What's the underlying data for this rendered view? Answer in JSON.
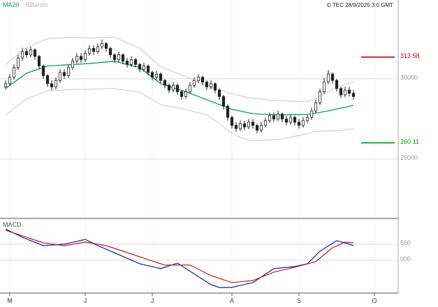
{
  "header": {
    "ma20_label": "MA20",
    "bbands_label": "BBands",
    "copyright": "© TEC 28/9/2025 3:0 GMT"
  },
  "colors": {
    "ma20": "#00a650",
    "bbands": "#c9c9c9",
    "candle": "#222222",
    "grid": "#dcdcdc",
    "month_grid": "#f0f0f0",
    "axis": "#555555",
    "right_axis": "#aaaaaa",
    "resistance": "#cc0000",
    "support": "#009900",
    "macd_line": "#1a1aae",
    "signal_line": "#c02020",
    "month_label": "#444444"
  },
  "chart_data": [
    {
      "type": "candlestick",
      "panel": "price",
      "x_axis": {
        "months": [
          {
            "label": "M",
            "i": 1
          },
          {
            "label": "J",
            "i": 19
          },
          {
            "label": "J",
            "i": 35
          },
          {
            "label": "A",
            "i": 54
          },
          {
            "label": "S",
            "i": 70
          },
          {
            "label": "O",
            "i": 88
          }
        ]
      },
      "y_axis": {
        "gridlines": [
          {
            "value": 300,
            "label": "30000"
          },
          {
            "value": 250,
            "label": "25000"
          }
        ]
      },
      "levels": [
        {
          "name": "resistance",
          "value": 313.58,
          "label": "313 58"
        },
        {
          "name": "support",
          "value": 260.11,
          "label": "260 11"
        }
      ],
      "series": {
        "candles_ohlc": [
          [
            295,
            299,
            293.5,
            297
          ],
          [
            297,
            303,
            295.5,
            301
          ],
          [
            301,
            309,
            299.5,
            307
          ],
          [
            307,
            315,
            305.5,
            313
          ],
          [
            313,
            319.5,
            311,
            317
          ],
          [
            317,
            319,
            313,
            315
          ],
          [
            315,
            320,
            313.5,
            318
          ],
          [
            318,
            319,
            312,
            314
          ],
          [
            314,
            315,
            306,
            308
          ],
          [
            308,
            309,
            300,
            302
          ],
          [
            302,
            303,
            295,
            297
          ],
          [
            297,
            299,
            293,
            295
          ],
          [
            295,
            301,
            293.5,
            299
          ],
          [
            299,
            306,
            297.5,
            304
          ],
          [
            304,
            306,
            300,
            302
          ],
          [
            302,
            309,
            300.5,
            307
          ],
          [
            307,
            313,
            305.5,
            311
          ],
          [
            311,
            316,
            309.5,
            314
          ],
          [
            314,
            316,
            310,
            312
          ],
          [
            312,
            318,
            310.5,
            316
          ],
          [
            316,
            321,
            314.5,
            319
          ],
          [
            319,
            321,
            315,
            317
          ],
          [
            317,
            322,
            315.5,
            320
          ],
          [
            320,
            324.5,
            318.5,
            322
          ],
          [
            322,
            323,
            317,
            319
          ],
          [
            319,
            320,
            313,
            315
          ],
          [
            315,
            316,
            310,
            312
          ],
          [
            312,
            317,
            310.5,
            315
          ],
          [
            315,
            316,
            309,
            311
          ],
          [
            311,
            313,
            307,
            309
          ],
          [
            309,
            314,
            307.5,
            312
          ],
          [
            312,
            313,
            307,
            309
          ],
          [
            309,
            310,
            304,
            306
          ],
          [
            306,
            310,
            304.5,
            308
          ],
          [
            308,
            309,
            302,
            304
          ],
          [
            304,
            305,
            299,
            301
          ],
          [
            301,
            305,
            299.5,
            303
          ],
          [
            303,
            304,
            297,
            299
          ],
          [
            299,
            300,
            294,
            296
          ],
          [
            296,
            297,
            291,
            293
          ],
          [
            293,
            298,
            291.5,
            296
          ],
          [
            296,
            297,
            290,
            292
          ],
          [
            292,
            293,
            287,
            289
          ],
          [
            289,
            294,
            287.5,
            292
          ],
          [
            292,
            298,
            290.5,
            296
          ],
          [
            296,
            301,
            294.5,
            299
          ],
          [
            299,
            303,
            297.5,
            301
          ],
          [
            301,
            302,
            296,
            298
          ],
          [
            298,
            299,
            293,
            295
          ],
          [
            295,
            299,
            293.5,
            297
          ],
          [
            297,
            298,
            291,
            293
          ],
          [
            293,
            294,
            287,
            289
          ],
          [
            289,
            290,
            281,
            283
          ],
          [
            283,
            284,
            274,
            276
          ],
          [
            276,
            277,
            269,
            271
          ],
          [
            271,
            273,
            267,
            269
          ],
          [
            269,
            274,
            267.5,
            272
          ],
          [
            272,
            274,
            268,
            270
          ],
          [
            270,
            275,
            268.5,
            273
          ],
          [
            273,
            275,
            269,
            271
          ],
          [
            271,
            272,
            266,
            268
          ],
          [
            268,
            273,
            266.5,
            271
          ],
          [
            271,
            276,
            269.5,
            274
          ],
          [
            274,
            279,
            272.5,
            277
          ],
          [
            277,
            279,
            273,
            275
          ],
          [
            275,
            280,
            273.5,
            278
          ],
          [
            278,
            279,
            273,
            275
          ],
          [
            275,
            277,
            271,
            273
          ],
          [
            273,
            278,
            271.5,
            276
          ],
          [
            276,
            277,
            271,
            273
          ],
          [
            273,
            275,
            269,
            271
          ],
          [
            271,
            276,
            269.5,
            274
          ],
          [
            274,
            278,
            272.5,
            276
          ],
          [
            276,
            282,
            274.5,
            280
          ],
          [
            280,
            287,
            278.5,
            285
          ],
          [
            285,
            294,
            283.5,
            292
          ],
          [
            292,
            300.5,
            290.5,
            298
          ],
          [
            298,
            305.5,
            296.5,
            303
          ],
          [
            303,
            304,
            297,
            299
          ],
          [
            299,
            300,
            292,
            294
          ],
          [
            294,
            295,
            288,
            290
          ],
          [
            290,
            295,
            288.5,
            293
          ],
          [
            293,
            295,
            289,
            291
          ],
          [
            291,
            293,
            287,
            289
          ]
        ],
        "ma20": [
          294,
          295.9,
          297.8,
          299.7,
          301.6,
          303.5,
          304.4,
          305.3,
          306.2,
          307.1,
          308,
          308.2,
          308.3,
          308.5,
          308.6,
          308.8,
          308.9,
          309.1,
          309.2,
          309.4,
          309.5,
          309.8,
          310,
          310.3,
          310.5,
          310.8,
          311,
          310.3,
          309.7,
          309,
          308.3,
          307.7,
          307,
          305,
          303,
          301,
          299,
          297,
          296.2,
          295.3,
          294.5,
          293.7,
          292.8,
          292,
          291,
          290,
          289,
          288,
          287,
          286,
          285,
          284,
          283,
          282,
          281,
          280.5,
          279.9,
          279.4,
          278.8,
          278.3,
          278.2,
          278,
          277.9,
          277.7,
          277.6,
          277.5,
          277.5,
          277.6,
          277.6,
          277.7,
          277.7,
          277.8,
          277.8,
          278.2,
          278.7,
          279.1,
          279.6,
          280,
          280.6,
          281.2,
          281.8,
          282.3,
          282.9,
          283.5
        ],
        "bb_upper_offset": [
          15,
          15.2,
          15.4,
          15.6,
          15.8,
          16,
          16.2,
          16.4,
          16.6,
          16.8,
          17,
          17,
          17,
          17,
          17,
          17,
          16.8,
          16.6,
          16.4,
          16.2,
          16,
          15.8,
          15.7,
          15.5,
          15.3,
          15.2,
          15,
          14.5,
          14,
          13.5,
          13,
          12.6,
          12.2,
          11.8,
          11.4,
          11,
          10.8,
          10.6,
          10.4,
          10.2,
          10,
          9.8,
          9.6,
          9.4,
          9.2,
          9,
          8.8,
          8.7,
          8.5,
          8.8,
          9,
          9.3,
          9.5,
          9.5,
          9.5,
          9.5,
          9.5,
          9.5,
          9.5,
          9.5,
          9.5,
          9.4,
          9.3,
          9.1,
          9,
          8.9,
          8.8,
          8.6,
          8.5,
          8.3,
          8,
          8,
          8,
          8.5,
          9,
          10,
          11,
          12,
          13,
          13.5,
          14,
          14.2,
          14.3,
          14.5
        ],
        "bb_lower_offset": [
          16.5,
          16.4,
          16.3,
          16.2,
          16.1,
          16,
          15.9,
          15.8,
          15.7,
          15.6,
          15.5,
          15.5,
          15.5,
          15.5,
          15.5,
          15.5,
          15.6,
          15.7,
          15.8,
          15.9,
          16,
          16.2,
          16.3,
          16.5,
          16.7,
          16.8,
          17,
          16.8,
          16.5,
          16.3,
          16,
          15.6,
          15.2,
          14.8,
          14.4,
          14,
          13.6,
          13.2,
          12.8,
          12.4,
          12,
          11.7,
          11.4,
          11.1,
          10.8,
          10.5,
          10.2,
          9.8,
          9.5,
          10.3,
          11,
          12,
          13,
          14,
          15,
          15.8,
          16.5,
          16.8,
          17,
          16.8,
          16.5,
          16.3,
          16,
          15.8,
          15.5,
          15.3,
          15,
          14.5,
          14,
          13.5,
          13,
          12.5,
          12,
          11.8,
          11.5,
          11.8,
          12,
          12.5,
          13,
          13.5,
          14,
          14.2,
          14.4,
          14.5
        ]
      }
    },
    {
      "type": "line",
      "panel": "macd",
      "label": "MACD",
      "gridlines": [
        {
          "value": 5,
          "label": "500"
        },
        {
          "value": 0,
          "label": "000"
        }
      ],
      "series": [
        {
          "name": "macd",
          "values": [
            9.75,
            9.1,
            8.45,
            7.8,
            7.15,
            6.63,
            6.11,
            5.59,
            5.07,
            4.55,
            4.64,
            4.73,
            4.82,
            4.91,
            5.0,
            5.3,
            5.6,
            5.9,
            6.2,
            6.5,
            5.85,
            5.2,
            4.55,
            3.99,
            3.43,
            2.87,
            2.31,
            1.75,
            1.18,
            0.61,
            0.04,
            -0.53,
            -1.1,
            -1.4,
            -1.7,
            -2.0,
            -2.3,
            -2.6,
            -2.18,
            -1.75,
            -1.33,
            -0.9,
            -1.74,
            -2.58,
            -3.41,
            -4.25,
            -5.09,
            -5.93,
            -6.76,
            -7.6,
            -8.05,
            -8.5,
            -8.48,
            -8.47,
            -8.45,
            -8.15,
            -7.85,
            -7.55,
            -7.25,
            -6.95,
            -6.08,
            -5.21,
            -4.34,
            -3.47,
            -2.6,
            -2.47,
            -2.34,
            -2.21,
            -2.08,
            -1.95,
            -1.67,
            -1.38,
            -1.1,
            0.2,
            1.5,
            2.8,
            3.63,
            4.45,
            5.28,
            6.1,
            5.73,
            5.37,
            5.0,
            4.55
          ]
        },
        {
          "name": "signal",
          "values": [
            9.35,
            8.91,
            8.48,
            8.04,
            7.6,
            7.16,
            6.73,
            6.29,
            5.86,
            5.42,
            5.25,
            5.07,
            4.9,
            4.72,
            4.55,
            4.77,
            4.99,
            5.21,
            5.43,
            5.65,
            5.43,
            5.21,
            4.99,
            4.77,
            4.55,
            4.12,
            3.69,
            3.26,
            2.83,
            2.4,
            1.96,
            1.52,
            1.08,
            0.64,
            0.2,
            -0.23,
            -0.65,
            -1.08,
            -1.5,
            -1.5,
            -1.5,
            -1.5,
            -1.5,
            -1.5,
            -1.5,
            -2.15,
            -2.81,
            -3.46,
            -4.12,
            -4.77,
            -5.21,
            -5.64,
            -6.08,
            -6.51,
            -6.95,
            -6.82,
            -6.69,
            -6.56,
            -6.43,
            -6.3,
            -5.78,
            -5.26,
            -4.74,
            -4.22,
            -3.7,
            -3.39,
            -3.09,
            -2.78,
            -2.48,
            -2.17,
            -1.82,
            -1.47,
            -1.13,
            -0.78,
            -0.43,
            0.65,
            1.73,
            2.82,
            3.9,
            4.48,
            5.07,
            5.65,
            5.55,
            5.45
          ]
        }
      ]
    }
  ]
}
